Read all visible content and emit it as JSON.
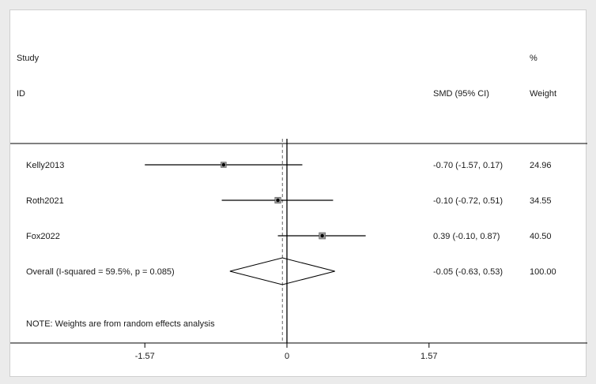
{
  "header": {
    "study_label": "Study",
    "id_label": "ID",
    "effect_label": "SMD (95% CI)",
    "weight_label_top": "%",
    "weight_label_bottom": "Weight"
  },
  "note": "NOTE: Weights are from random effects analysis",
  "chart_data": {
    "type": "forest",
    "effect_measure": "SMD (95% CI)",
    "x_ticks": [
      -1.57,
      0,
      1.57
    ],
    "x_tick_labels": [
      "-1.57",
      "0",
      "1.57"
    ],
    "xlim": [
      -3.2,
      3.2
    ],
    "null_line": 0,
    "studies": [
      {
        "id": "Kelly2013",
        "estimate": -0.7,
        "lower": -1.57,
        "upper": 0.17,
        "ci_text": "-0.70 (-1.57, 0.17)",
        "weight": 24.96,
        "weight_text": "24.96"
      },
      {
        "id": "Roth2021",
        "estimate": -0.1,
        "lower": -0.72,
        "upper": 0.51,
        "ci_text": "-0.10 (-0.72, 0.51)",
        "weight": 34.55,
        "weight_text": "34.55"
      },
      {
        "id": "Fox2022",
        "estimate": 0.39,
        "lower": -0.1,
        "upper": 0.87,
        "ci_text": "0.39 (-0.10, 0.87)",
        "weight": 40.5,
        "weight_text": "40.50"
      }
    ],
    "overall": {
      "label": "Overall  (I-squared = 59.5%, p = 0.085)",
      "estimate": -0.05,
      "lower": -0.63,
      "upper": 0.53,
      "ci_text": "-0.05 (-0.63, 0.53)",
      "weight_text": "100.00"
    }
  }
}
